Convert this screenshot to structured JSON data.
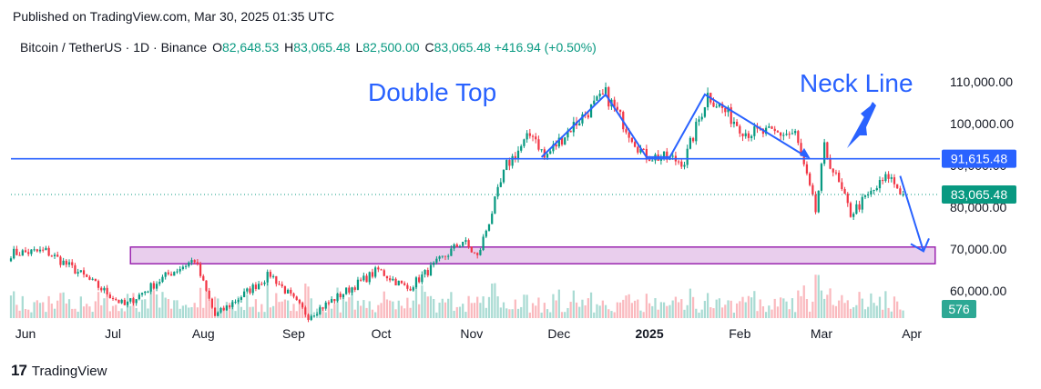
{
  "header": {
    "published": "Published on TradingView.com, Mar 30, 2025 01:35 UTC"
  },
  "legend": {
    "symbol": "Bitcoin / TetherUS · 1D · Binance",
    "o_label": "O",
    "o_value": "82,648.53",
    "h_label": "H",
    "h_value": "83,065.48",
    "l_label": "L",
    "l_value": "82,500.00",
    "c_label": "C",
    "c_value": "83,065.48",
    "change": "+416.94 (+0.50%)"
  },
  "footer": {
    "logo": "17",
    "brand": "TradingView"
  },
  "colors": {
    "up": "#089981",
    "down": "#f23645",
    "annotation": "#2962ff",
    "zone_fill": "#e1bee7",
    "zone_border": "#9c27b0",
    "price_tag": "#089981"
  },
  "chart_data": {
    "type": "candlestick",
    "y_axis": {
      "ylim": [
        53500,
        113500
      ],
      "ticks": [
        110000,
        100000,
        80000,
        70000,
        60000
      ],
      "tick_labels": [
        "110,000.00",
        "100,000.00",
        "80,000.00",
        "70,000.00",
        "60,000.00"
      ],
      "partial_tick_label": "90,000.00"
    },
    "x_axis": {
      "start_date": "2024-05-27",
      "end_date": "2025-04-10",
      "ticks": [
        {
          "date": "2024-06-01",
          "label": "Jun",
          "bold": false
        },
        {
          "date": "2024-07-01",
          "label": "Jul",
          "bold": false
        },
        {
          "date": "2024-08-01",
          "label": "Aug",
          "bold": false
        },
        {
          "date": "2024-09-01",
          "label": "Sep",
          "bold": false
        },
        {
          "date": "2024-10-01",
          "label": "Oct",
          "bold": false
        },
        {
          "date": "2024-11-01",
          "label": "Nov",
          "bold": false
        },
        {
          "date": "2024-12-01",
          "label": "Dec",
          "bold": false
        },
        {
          "date": "2025-01-01",
          "label": "2025",
          "bold": true
        },
        {
          "date": "2025-02-01",
          "label": "Feb",
          "bold": false
        },
        {
          "date": "2025-03-01",
          "label": "Mar",
          "bold": false
        },
        {
          "date": "2025-04-01",
          "label": "Apr",
          "bold": false
        }
      ]
    },
    "close_series": [
      {
        "date": "2024-05-27",
        "close": 69000
      },
      {
        "date": "2024-06-08",
        "close": 69500
      },
      {
        "date": "2024-06-18",
        "close": 65000
      },
      {
        "date": "2024-07-05",
        "close": 56500
      },
      {
        "date": "2024-07-20",
        "close": 64000
      },
      {
        "date": "2024-07-29",
        "close": 67500
      },
      {
        "date": "2024-08-05",
        "close": 54000
      },
      {
        "date": "2024-08-24",
        "close": 64000
      },
      {
        "date": "2024-09-06",
        "close": 54000
      },
      {
        "date": "2024-09-30",
        "close": 65000
      },
      {
        "date": "2024-10-10",
        "close": 60500
      },
      {
        "date": "2024-10-29",
        "close": 72000
      },
      {
        "date": "2024-11-03",
        "close": 68000
      },
      {
        "date": "2024-11-13",
        "close": 90000
      },
      {
        "date": "2024-11-22",
        "close": 98000
      },
      {
        "date": "2024-11-26",
        "close": 91800
      },
      {
        "date": "2024-12-05",
        "close": 99000
      },
      {
        "date": "2024-12-17",
        "close": 107000
      },
      {
        "date": "2024-12-30",
        "close": 92500
      },
      {
        "date": "2025-01-13",
        "close": 91000
      },
      {
        "date": "2025-01-21",
        "close": 107000
      },
      {
        "date": "2025-02-03",
        "close": 98000
      },
      {
        "date": "2025-02-20",
        "close": 97500
      },
      {
        "date": "2025-02-27",
        "close": 79000
      },
      {
        "date": "2025-03-02",
        "close": 94000
      },
      {
        "date": "2025-03-11",
        "close": 78500
      },
      {
        "date": "2025-03-24",
        "close": 87500
      },
      {
        "date": "2025-03-29",
        "close": 83065
      }
    ],
    "volume_tag": "576",
    "levels": [
      {
        "name": "neck-line",
        "price": 91615.48,
        "label": "91,615.48"
      },
      {
        "name": "last-price",
        "price": 83065.48,
        "label": "83,065.48"
      }
    ],
    "support_zone": {
      "from": 66500,
      "to": 70500,
      "start_date": "2024-07-07",
      "end_date": "2025-04-09"
    },
    "annotations": {
      "double_top_label": "Double Top",
      "neck_line_label": "Neck Line",
      "double_top_path": [
        {
          "date": "2024-11-25",
          "price": 92000
        },
        {
          "date": "2024-12-17",
          "price": 107000
        },
        {
          "date": "2024-12-31",
          "price": 92000
        },
        {
          "date": "2025-01-08",
          "price": 92000
        },
        {
          "date": "2025-01-20",
          "price": 107000
        },
        {
          "date": "2025-02-24",
          "price": 92000
        }
      ],
      "projection": [
        {
          "date": "2025-03-28",
          "price": 87500
        },
        {
          "date": "2025-04-05",
          "price": 69500
        }
      ]
    }
  }
}
